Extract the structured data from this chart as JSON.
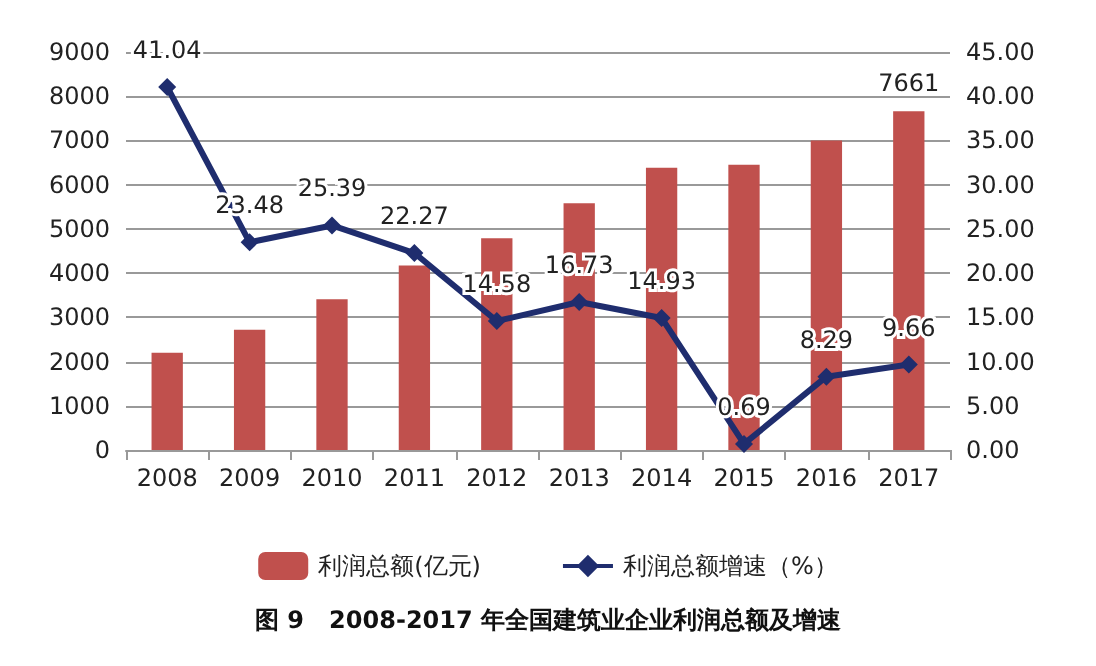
{
  "chart_data": {
    "type": "bar",
    "title": "图 9   2008-2017 年全国建筑业企业利润总额及增速",
    "categories": [
      "2008",
      "2009",
      "2010",
      "2011",
      "2012",
      "2013",
      "2014",
      "2015",
      "2016",
      "2017"
    ],
    "series": [
      {
        "name": "利润总额(亿元)",
        "color": "#c0504d",
        "values": [
          2200,
          2720,
          3410,
          4170,
          4790,
          5580,
          6380,
          6450,
          7000,
          7661
        ],
        "value_labels": [
          null,
          null,
          null,
          null,
          null,
          null,
          null,
          null,
          null,
          "7661"
        ]
      },
      {
        "name": "利润总额增速（%）",
        "type": "line",
        "axis": "y2",
        "color": "#1f2d6e",
        "marker": "diamond",
        "values": [
          41.04,
          23.48,
          25.39,
          22.27,
          14.58,
          16.73,
          14.93,
          0.69,
          8.29,
          9.66
        ],
        "value_labels": [
          "41.04",
          "23.48",
          "25.39",
          "22.27",
          "14.58",
          "16.73",
          "14.93",
          "0.69",
          "8.29",
          "9.66"
        ]
      }
    ],
    "ylim": [
      0,
      9000
    ],
    "yticks": [
      0,
      1000,
      2000,
      3000,
      4000,
      5000,
      6000,
      7000,
      8000,
      9000
    ],
    "y2lim": [
      0,
      45
    ],
    "y2ticks": [
      {
        "value": 0,
        "label": "0.00"
      },
      {
        "value": 5,
        "label": "5.00"
      },
      {
        "value": 10,
        "label": "10.00"
      },
      {
        "value": 15,
        "label": "15.00"
      },
      {
        "value": 20,
        "label": "20.00"
      },
      {
        "value": 25,
        "label": "25.00"
      },
      {
        "value": 30,
        "label": "30.00"
      },
      {
        "value": 35,
        "label": "35.00"
      },
      {
        "value": 40,
        "label": "40.00"
      },
      {
        "value": 45,
        "label": "45.00"
      }
    ],
    "grid": "y",
    "legend": "bottom"
  }
}
